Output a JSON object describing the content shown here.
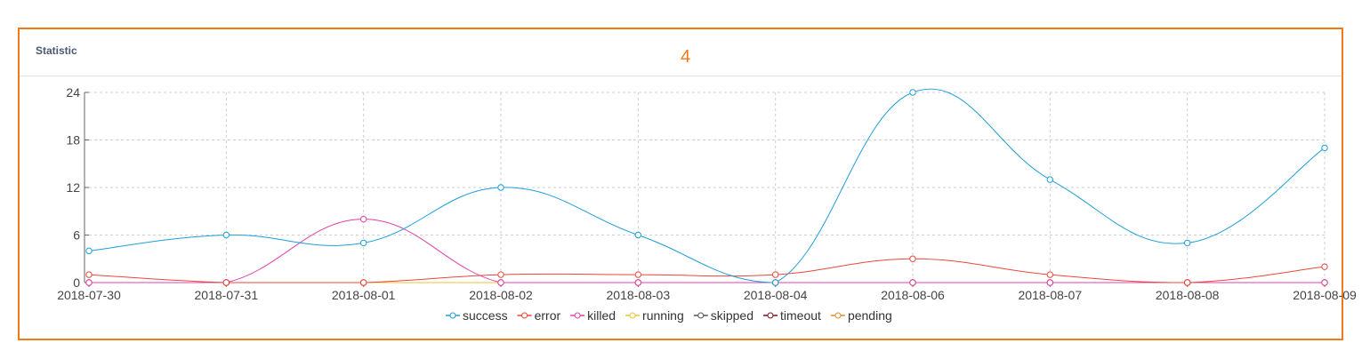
{
  "panel": {
    "title": "Statistic",
    "badge": "4"
  },
  "colors": {
    "border": "#f07a1a",
    "badge": "#f07a1a"
  },
  "chart_data": {
    "type": "line",
    "x": [
      "2018-07-30",
      "2018-07-31",
      "2018-08-01",
      "2018-08-02",
      "2018-08-03",
      "2018-08-04",
      "2018-08-06",
      "2018-08-07",
      "2018-08-08",
      "2018-08-09"
    ],
    "ylim": [
      0,
      24
    ],
    "yticks": [
      0,
      6,
      12,
      18,
      24
    ],
    "grid": true,
    "legend_position": "bottom",
    "series": [
      {
        "name": "success",
        "color": "#1e9fd8",
        "values": [
          4,
          6,
          5,
          12,
          6,
          0,
          24,
          13,
          5,
          17
        ]
      },
      {
        "name": "error",
        "color": "#e8483a",
        "values": [
          1,
          0,
          0,
          1,
          1,
          1,
          3,
          1,
          0,
          2
        ]
      },
      {
        "name": "killed",
        "color": "#e040a8",
        "values": [
          0,
          0,
          8,
          0,
          0,
          0,
          0,
          0,
          0,
          0
        ]
      },
      {
        "name": "running",
        "color": "#e8c33a",
        "values": [
          0,
          0,
          0,
          0,
          0,
          0,
          0,
          0,
          0,
          0
        ]
      },
      {
        "name": "skipped",
        "color": "#555555",
        "values": [
          0,
          0,
          0,
          0,
          0,
          0,
          0,
          0,
          0,
          0
        ]
      },
      {
        "name": "timeout",
        "color": "#7a1020",
        "values": [
          0,
          0,
          0,
          0,
          0,
          0,
          0,
          0,
          0,
          0
        ]
      },
      {
        "name": "pending",
        "color": "#e88a2a",
        "values": [
          0,
          0,
          0,
          0,
          0,
          0,
          0,
          0,
          0,
          0
        ]
      }
    ]
  }
}
